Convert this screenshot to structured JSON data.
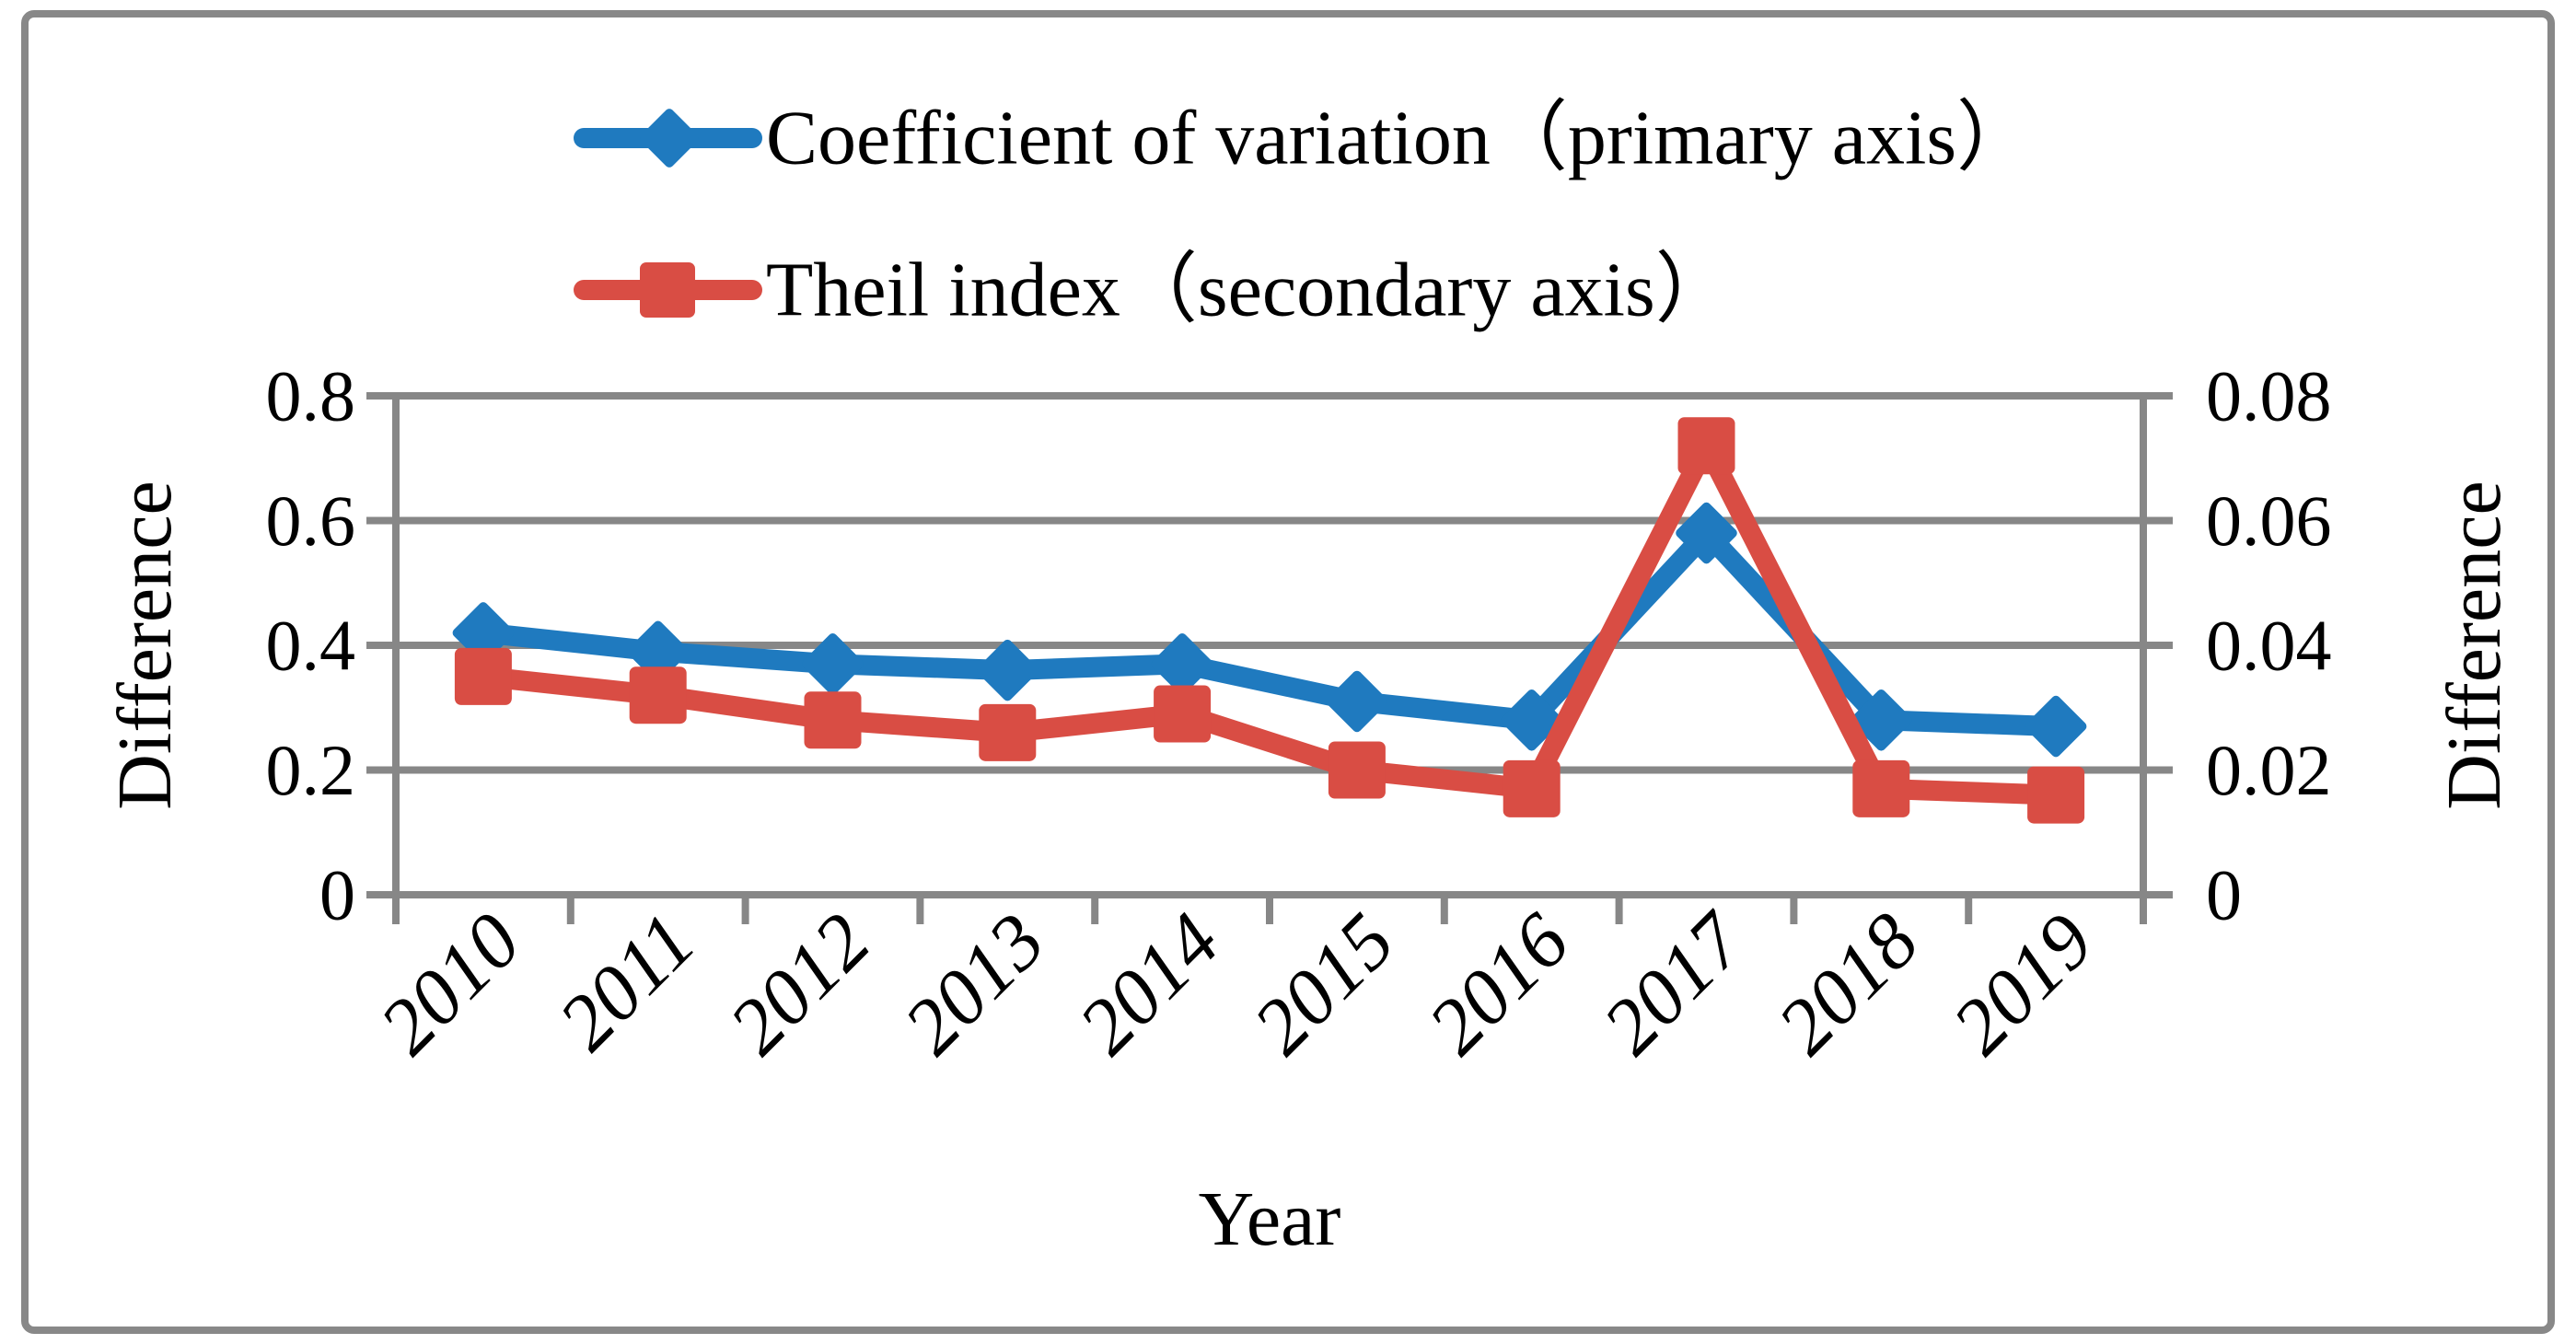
{
  "figure": {
    "type_hint": "dual-axis line chart figure",
    "border_color": "#888888",
    "background": "#ffffff"
  },
  "colors": {
    "primary_series": "#1F7ABF",
    "secondary_series": "#D94D44",
    "grid": "#878787",
    "text": "#000000"
  },
  "legend": {
    "items": [
      {
        "label": "Coefficient of variation（primary axis）",
        "marker": "diamond",
        "color": "#1F7ABF"
      },
      {
        "label": "Theil index（secondary axis）",
        "marker": "square",
        "color": "#D94D44"
      }
    ]
  },
  "axes": {
    "left": {
      "title": "Difference",
      "tick_labels": [
        "0",
        "0.2",
        "0.4",
        "0.6",
        "0.8"
      ],
      "tick_values": [
        0,
        0.2,
        0.4,
        0.6,
        0.8
      ]
    },
    "right": {
      "title": "Difference",
      "tick_labels": [
        "0",
        "0.02",
        "0.04",
        "0.06",
        "0.08"
      ],
      "tick_values": [
        0,
        0.02,
        0.04,
        0.06,
        0.08
      ]
    },
    "x": {
      "title": "Year"
    }
  },
  "chart_data": {
    "type": "line",
    "categories": [
      "2010",
      "2011",
      "2012",
      "2013",
      "2014",
      "2015",
      "2016",
      "2017",
      "2018",
      "2019"
    ],
    "series": [
      {
        "id": "coefficient-of-variation",
        "name": "Coefficient of variation（primary axis）",
        "axis": "primary",
        "marker": "diamond",
        "color": "#1F7ABF",
        "values": [
          0.42,
          0.39,
          0.37,
          0.36,
          0.37,
          0.31,
          0.28,
          0.58,
          0.28,
          0.27
        ]
      },
      {
        "id": "theil-index",
        "name": "Theil index（secondary axis）",
        "axis": "secondary",
        "marker": "square",
        "color": "#D94D44",
        "values": [
          0.035,
          0.032,
          0.028,
          0.026,
          0.029,
          0.02,
          0.017,
          0.072,
          0.017,
          0.016
        ]
      }
    ],
    "xlabel": "Year",
    "ylabel_left": "Difference",
    "ylabel_right": "Difference",
    "primary_ylim": [
      0,
      0.8
    ],
    "secondary_ylim": [
      0,
      0.08
    ],
    "grid": "horizontal",
    "legend_position": "top"
  }
}
